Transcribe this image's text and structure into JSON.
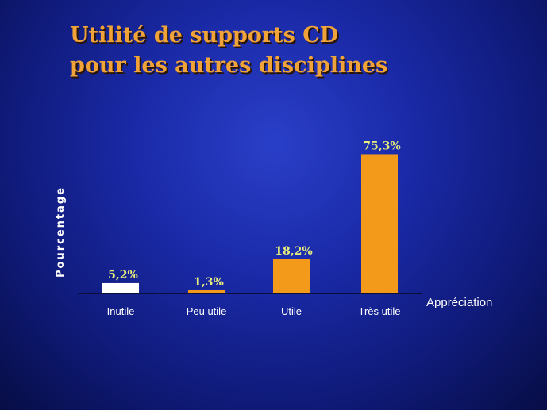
{
  "chart_data": {
    "type": "bar",
    "title_lines": [
      "Utilité de supports CD",
      "pour les autres disciplines"
    ],
    "xlabel": "Appréciation",
    "ylabel": "Pourcentage",
    "categories": [
      "Inutile",
      "Peu utile",
      "Utile",
      "Très utile"
    ],
    "values": [
      5.2,
      1.3,
      18.2,
      75.3
    ],
    "value_labels": [
      "5,2%",
      "1,3%",
      "18,2%",
      "75,3%"
    ],
    "bar_colors": [
      "#ffffff",
      "#f39a1a",
      "#f39a1a",
      "#f39a1a"
    ],
    "ylim": [
      0,
      100
    ],
    "grid": false,
    "legend": "none"
  },
  "colors": {
    "background": "#1a2aa8",
    "title": "#f0a338",
    "data_label": "#e8ee7a",
    "axis": "#0a0f3a"
  }
}
